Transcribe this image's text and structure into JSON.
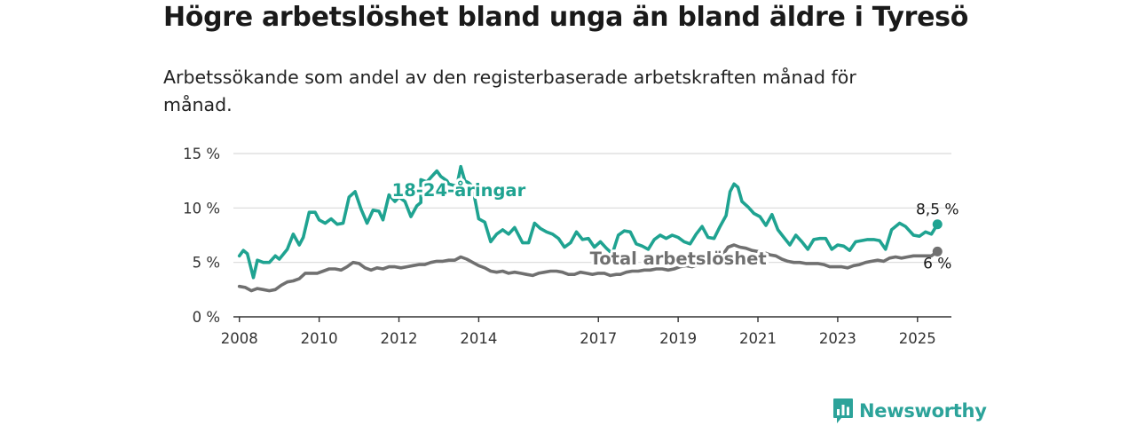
{
  "title": "Högre arbetslöshet bland unga än bland äldre i Tyresö",
  "subtitle": "Arbetssökande som andel av den registerbaserade arbetskraften månad för månad.",
  "brand": "Newsworthy",
  "colors": {
    "youth": "#1fa391",
    "total": "#707070",
    "text": "#1a1a1a",
    "grid": "#d9d9d9",
    "brand": "#2ca39a"
  },
  "chart_data": {
    "type": "line",
    "x_unit": "year",
    "xlim": [
      2007.85,
      2025.85
    ],
    "ylim": [
      0,
      15
    ],
    "y_ticks": [
      {
        "value": 0,
        "label": "0 %"
      },
      {
        "value": 5,
        "label": "5 %"
      },
      {
        "value": 10,
        "label": "10 %"
      },
      {
        "value": 15,
        "label": "15 %"
      }
    ],
    "x_ticks": [
      "2008",
      "2010",
      "2012",
      "2014",
      "2017",
      "2019",
      "2021",
      "2023",
      "2025"
    ],
    "grid": "horizontal",
    "series": [
      {
        "name": "18-24-åringar",
        "color": "#1fa391",
        "end_label": "8,5 %",
        "points": [
          [
            2008.0,
            5.6
          ],
          [
            2008.1,
            6.1
          ],
          [
            2008.2,
            5.8
          ],
          [
            2008.35,
            3.6
          ],
          [
            2008.45,
            5.2
          ],
          [
            2008.6,
            5.0
          ],
          [
            2008.75,
            5.0
          ],
          [
            2008.9,
            5.6
          ],
          [
            2009.0,
            5.3
          ],
          [
            2009.2,
            6.2
          ],
          [
            2009.35,
            7.6
          ],
          [
            2009.5,
            6.6
          ],
          [
            2009.6,
            7.3
          ],
          [
            2009.75,
            9.6
          ],
          [
            2009.9,
            9.6
          ],
          [
            2010.0,
            8.9
          ],
          [
            2010.15,
            8.6
          ],
          [
            2010.3,
            9.0
          ],
          [
            2010.45,
            8.5
          ],
          [
            2010.6,
            8.6
          ],
          [
            2010.75,
            11.0
          ],
          [
            2010.9,
            11.5
          ],
          [
            2011.05,
            9.9
          ],
          [
            2011.2,
            8.6
          ],
          [
            2011.35,
            9.8
          ],
          [
            2011.5,
            9.7
          ],
          [
            2011.6,
            8.9
          ],
          [
            2011.75,
            11.2
          ],
          [
            2011.9,
            10.6
          ],
          [
            2012.0,
            11.0
          ],
          [
            2012.15,
            10.6
          ],
          [
            2012.3,
            9.2
          ],
          [
            2012.45,
            10.2
          ],
          [
            2012.55,
            10.5
          ],
          [
            2012.55,
            12.6
          ],
          [
            2012.7,
            12.4
          ],
          [
            2012.85,
            13.0
          ],
          [
            2012.95,
            13.4
          ],
          [
            2013.05,
            12.9
          ],
          [
            2013.2,
            12.5
          ],
          [
            2013.25,
            12.2
          ],
          [
            2013.45,
            12.0
          ],
          [
            2013.55,
            13.8
          ],
          [
            2013.65,
            12.5
          ],
          [
            2013.75,
            12.3
          ],
          [
            2013.9,
            11.8
          ],
          [
            2013.9,
            10.9
          ],
          [
            2014.0,
            9.0
          ],
          [
            2014.15,
            8.7
          ],
          [
            2014.3,
            6.9
          ],
          [
            2014.45,
            7.6
          ],
          [
            2014.6,
            8.0
          ],
          [
            2014.75,
            7.6
          ],
          [
            2014.9,
            8.2
          ],
          [
            2015.1,
            6.8
          ],
          [
            2015.25,
            6.8
          ],
          [
            2015.4,
            8.6
          ],
          [
            2015.55,
            8.1
          ],
          [
            2015.7,
            7.8
          ],
          [
            2015.85,
            7.6
          ],
          [
            2016.0,
            7.2
          ],
          [
            2016.15,
            6.4
          ],
          [
            2016.3,
            6.8
          ],
          [
            2016.45,
            7.8
          ],
          [
            2016.6,
            7.1
          ],
          [
            2016.75,
            7.2
          ],
          [
            2016.9,
            6.4
          ],
          [
            2017.05,
            6.9
          ],
          [
            2017.2,
            6.3
          ],
          [
            2017.35,
            5.8
          ],
          [
            2017.5,
            7.5
          ],
          [
            2017.65,
            7.9
          ],
          [
            2017.8,
            7.8
          ],
          [
            2017.95,
            6.7
          ],
          [
            2018.1,
            6.5
          ],
          [
            2018.25,
            6.2
          ],
          [
            2018.4,
            7.1
          ],
          [
            2018.55,
            7.5
          ],
          [
            2018.7,
            7.2
          ],
          [
            2018.85,
            7.5
          ],
          [
            2019.0,
            7.3
          ],
          [
            2019.15,
            6.9
          ],
          [
            2019.3,
            6.7
          ],
          [
            2019.45,
            7.6
          ],
          [
            2019.6,
            8.3
          ],
          [
            2019.75,
            7.3
          ],
          [
            2019.9,
            7.2
          ],
          [
            2020.05,
            8.3
          ],
          [
            2020.2,
            9.3
          ],
          [
            2020.3,
            11.5
          ],
          [
            2020.4,
            12.2
          ],
          [
            2020.5,
            11.9
          ],
          [
            2020.6,
            10.6
          ],
          [
            2020.75,
            10.1
          ],
          [
            2020.9,
            9.5
          ],
          [
            2021.05,
            9.2
          ],
          [
            2021.2,
            8.4
          ],
          [
            2021.35,
            9.4
          ],
          [
            2021.5,
            8.0
          ],
          [
            2021.65,
            7.3
          ],
          [
            2021.8,
            6.6
          ],
          [
            2021.95,
            7.5
          ],
          [
            2022.1,
            6.9
          ],
          [
            2022.25,
            6.2
          ],
          [
            2022.4,
            7.1
          ],
          [
            2022.55,
            7.2
          ],
          [
            2022.7,
            7.2
          ],
          [
            2022.85,
            6.2
          ],
          [
            2023.0,
            6.6
          ],
          [
            2023.15,
            6.5
          ],
          [
            2023.3,
            6.1
          ],
          [
            2023.45,
            6.9
          ],
          [
            2023.6,
            7.0
          ],
          [
            2023.75,
            7.1
          ],
          [
            2023.9,
            7.1
          ],
          [
            2024.05,
            7.0
          ],
          [
            2024.2,
            6.2
          ],
          [
            2024.35,
            8.0
          ],
          [
            2024.55,
            8.6
          ],
          [
            2024.7,
            8.3
          ],
          [
            2024.9,
            7.5
          ],
          [
            2025.05,
            7.4
          ],
          [
            2025.2,
            7.8
          ],
          [
            2025.35,
            7.6
          ],
          [
            2025.5,
            8.5
          ]
        ]
      },
      {
        "name": "Total arbetslöshet",
        "color": "#707070",
        "end_label": "6 %",
        "points": [
          [
            2008.0,
            2.8
          ],
          [
            2008.15,
            2.7
          ],
          [
            2008.3,
            2.4
          ],
          [
            2008.45,
            2.6
          ],
          [
            2008.6,
            2.5
          ],
          [
            2008.75,
            2.4
          ],
          [
            2008.9,
            2.5
          ],
          [
            2009.05,
            2.9
          ],
          [
            2009.2,
            3.2
          ],
          [
            2009.35,
            3.3
          ],
          [
            2009.5,
            3.5
          ],
          [
            2009.65,
            4.0
          ],
          [
            2009.8,
            4.0
          ],
          [
            2009.95,
            4.0
          ],
          [
            2010.1,
            4.2
          ],
          [
            2010.25,
            4.4
          ],
          [
            2010.4,
            4.4
          ],
          [
            2010.55,
            4.3
          ],
          [
            2010.7,
            4.6
          ],
          [
            2010.85,
            5.0
          ],
          [
            2011.0,
            4.9
          ],
          [
            2011.15,
            4.5
          ],
          [
            2011.3,
            4.3
          ],
          [
            2011.45,
            4.5
          ],
          [
            2011.6,
            4.4
          ],
          [
            2011.75,
            4.6
          ],
          [
            2011.9,
            4.6
          ],
          [
            2012.05,
            4.5
          ],
          [
            2012.2,
            4.6
          ],
          [
            2012.35,
            4.7
          ],
          [
            2012.5,
            4.8
          ],
          [
            2012.65,
            4.8
          ],
          [
            2012.8,
            5.0
          ],
          [
            2012.95,
            5.1
          ],
          [
            2013.1,
            5.1
          ],
          [
            2013.25,
            5.2
          ],
          [
            2013.4,
            5.2
          ],
          [
            2013.55,
            5.5
          ],
          [
            2013.7,
            5.3
          ],
          [
            2013.85,
            5.0
          ],
          [
            2014.0,
            4.7
          ],
          [
            2014.15,
            4.5
          ],
          [
            2014.3,
            4.2
          ],
          [
            2014.45,
            4.1
          ],
          [
            2014.6,
            4.2
          ],
          [
            2014.75,
            4.0
          ],
          [
            2014.9,
            4.1
          ],
          [
            2015.05,
            4.0
          ],
          [
            2015.2,
            3.9
          ],
          [
            2015.35,
            3.8
          ],
          [
            2015.5,
            4.0
          ],
          [
            2015.65,
            4.1
          ],
          [
            2015.8,
            4.2
          ],
          [
            2015.95,
            4.2
          ],
          [
            2016.1,
            4.1
          ],
          [
            2016.25,
            3.9
          ],
          [
            2016.4,
            3.9
          ],
          [
            2016.55,
            4.1
          ],
          [
            2016.7,
            4.0
          ],
          [
            2016.85,
            3.9
          ],
          [
            2017.0,
            4.0
          ],
          [
            2017.15,
            4.0
          ],
          [
            2017.3,
            3.8
          ],
          [
            2017.45,
            3.9
          ],
          [
            2017.55,
            3.9
          ],
          [
            2017.7,
            4.1
          ],
          [
            2017.85,
            4.2
          ],
          [
            2018.0,
            4.2
          ],
          [
            2018.15,
            4.3
          ],
          [
            2018.3,
            4.3
          ],
          [
            2018.45,
            4.4
          ],
          [
            2018.6,
            4.4
          ],
          [
            2018.75,
            4.3
          ],
          [
            2018.9,
            4.4
          ],
          [
            2019.05,
            4.6
          ],
          [
            2019.2,
            4.7
          ],
          [
            2019.35,
            4.6
          ],
          [
            2019.5,
            4.8
          ],
          [
            2019.65,
            5.0
          ],
          [
            2019.8,
            5.2
          ],
          [
            2019.95,
            5.4
          ],
          [
            2020.1,
            5.6
          ],
          [
            2020.25,
            6.4
          ],
          [
            2020.4,
            6.6
          ],
          [
            2020.55,
            6.4
          ],
          [
            2020.7,
            6.3
          ],
          [
            2020.85,
            6.1
          ],
          [
            2021.0,
            6.0
          ],
          [
            2021.15,
            5.9
          ],
          [
            2021.3,
            5.7
          ],
          [
            2021.45,
            5.6
          ],
          [
            2021.6,
            5.3
          ],
          [
            2021.75,
            5.1
          ],
          [
            2021.9,
            5.0
          ],
          [
            2022.05,
            5.0
          ],
          [
            2022.2,
            4.9
          ],
          [
            2022.35,
            4.9
          ],
          [
            2022.5,
            4.9
          ],
          [
            2022.65,
            4.8
          ],
          [
            2022.8,
            4.6
          ],
          [
            2022.95,
            4.6
          ],
          [
            2023.1,
            4.6
          ],
          [
            2023.25,
            4.5
          ],
          [
            2023.4,
            4.7
          ],
          [
            2023.55,
            4.8
          ],
          [
            2023.7,
            5.0
          ],
          [
            2023.85,
            5.1
          ],
          [
            2024.0,
            5.2
          ],
          [
            2024.15,
            5.1
          ],
          [
            2024.3,
            5.4
          ],
          [
            2024.45,
            5.5
          ],
          [
            2024.6,
            5.4
          ],
          [
            2024.75,
            5.5
          ],
          [
            2024.9,
            5.6
          ],
          [
            2025.05,
            5.6
          ],
          [
            2025.2,
            5.6
          ],
          [
            2025.35,
            5.6
          ],
          [
            2025.5,
            6.0
          ]
        ]
      }
    ],
    "annotations": [
      {
        "text": "18-24-åringar",
        "series": 0,
        "x": 2013.5,
        "y": 11.1
      },
      {
        "text": "Total arbetslöshet",
        "series": 1,
        "x": 2019.0,
        "y": 4.8
      }
    ]
  }
}
